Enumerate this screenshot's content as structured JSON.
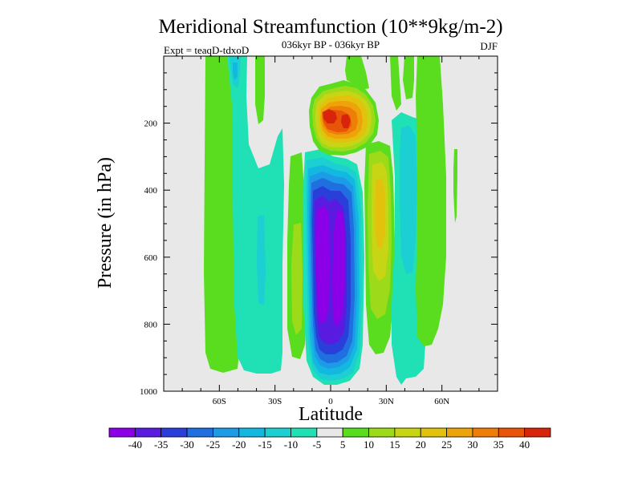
{
  "chart_data": {
    "type": "heatmap",
    "title": "Meridional Streamfunction (10**9kg/m-2)",
    "subtitle": "036kyr BP - 036kyr BP",
    "left_label": "Expt = teaqD-tdxoD",
    "right_label": "DJF",
    "xlabel": "Latitude",
    "ylabel": "Pressure (in hPa)",
    "xlim": [
      -90,
      90
    ],
    "ylim": [
      1000,
      0
    ],
    "x_ticks": [
      {
        "value": -60,
        "label": "60S"
      },
      {
        "value": -30,
        "label": "30S"
      },
      {
        "value": 0,
        "label": "0"
      },
      {
        "value": 30,
        "label": "30N"
      },
      {
        "value": 60,
        "label": "60N"
      }
    ],
    "y_ticks": [
      {
        "value": 200,
        "label": "200"
      },
      {
        "value": 400,
        "label": "400"
      },
      {
        "value": 600,
        "label": "600"
      },
      {
        "value": 800,
        "label": "800"
      },
      {
        "value": 1000,
        "label": "1000"
      }
    ],
    "colorbar": {
      "levels": [
        "-40",
        "-35",
        "-30",
        "-25",
        "-20",
        "-15",
        "-10",
        "-5",
        "5",
        "10",
        "15",
        "20",
        "25",
        "30",
        "35",
        "40"
      ],
      "colors": [
        "#8B00E6",
        "#5A1BE0",
        "#2A3FD9",
        "#1F6FE0",
        "#1E9BE6",
        "#12B8E0",
        "#1CCFD3",
        "#20E0B5",
        "#E8E8E8",
        "#5BDD1F",
        "#9DDB1A",
        "#C8D514",
        "#E2C20C",
        "#EDA40A",
        "#EE7E08",
        "#E85408",
        "#D8240A"
      ]
    },
    "background_color": "#E8E8E8",
    "fields": [
      {
        "name": "sh-high-lat-cell",
        "value_range": [
          5,
          10
        ],
        "lat_range": [
          -68,
          -55
        ],
        "p_range": [
          20,
          970
        ]
      },
      {
        "name": "sh-midlat-cell",
        "value_range": [
          -10,
          -5
        ],
        "lat_range": [
          -52,
          -30
        ],
        "p_range": [
          20,
          960
        ]
      },
      {
        "name": "sh-midlat-core",
        "value_range": [
          -15,
          -10
        ],
        "lat_range": [
          -52,
          -48
        ],
        "p_range": [
          20,
          120
        ]
      },
      {
        "name": "subtropical-positive-band",
        "value_range": [
          5,
          15
        ],
        "lat_range": [
          -18,
          -10
        ],
        "p_range": [
          350,
          950
        ]
      },
      {
        "name": "hadley-cell-south",
        "value_range": [
          -40,
          -35
        ],
        "lat_range": [
          -10,
          10
        ],
        "p_range": [
          230,
          990
        ]
      },
      {
        "name": "upper-tropical-positive",
        "value_range": [
          30,
          40
        ],
        "lat_range": [
          -5,
          12
        ],
        "p_range": [
          100,
          280
        ]
      },
      {
        "name": "nh-subtropical-positive",
        "value_range": [
          10,
          20
        ],
        "lat_range": [
          12,
          35
        ],
        "p_range": [
          180,
          920
        ]
      },
      {
        "name": "nh-midlat-negative",
        "value_range": [
          -10,
          -5
        ],
        "lat_range": [
          34,
          56
        ],
        "p_range": [
          20,
          1000
        ]
      },
      {
        "name": "nh-highlat-positive",
        "value_range": [
          5,
          10
        ],
        "lat_range": [
          50,
          68
        ],
        "p_range": [
          20,
          920
        ]
      },
      {
        "name": "polar-feature",
        "value_range": [
          5,
          10
        ],
        "lat_range": [
          67,
          69
        ],
        "p_range": [
          280,
          580
        ]
      }
    ]
  }
}
